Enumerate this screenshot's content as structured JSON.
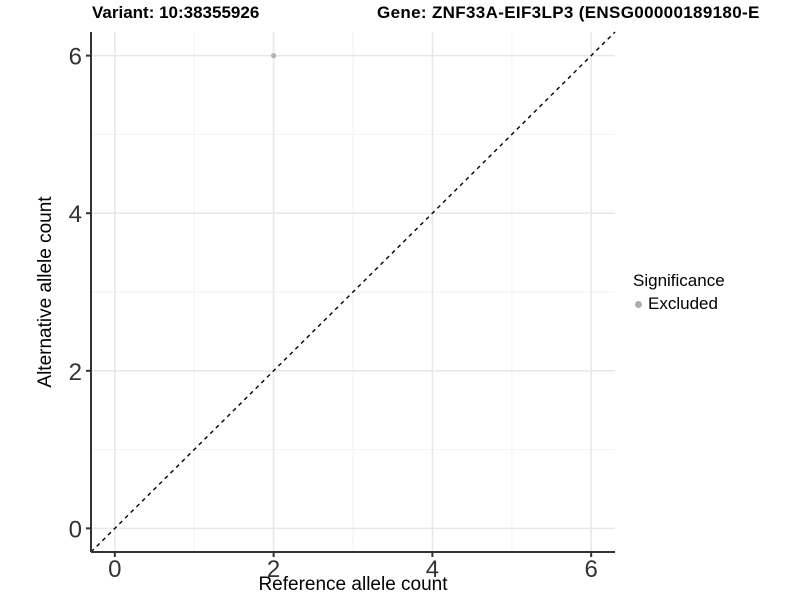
{
  "titles": {
    "variant": "Variant: 10:38355926",
    "gene": "Gene: ZNF33A-EIF3LP3 (ENSG00000189180-E"
  },
  "chart_data": {
    "type": "scatter",
    "title": "Variant: 10:38355926  |  Gene: ZNF33A-EIF3LP3 (ENSG00000189180-E…)",
    "xlabel": "Reference allele count",
    "ylabel": "Alternative allele count",
    "xlim": [
      -0.3,
      6.3
    ],
    "ylim": [
      -0.3,
      6.3
    ],
    "x_major_ticks": [
      0,
      2,
      4,
      6
    ],
    "x_minor_ticks": [
      1,
      3,
      5
    ],
    "y_major_ticks": [
      0,
      2,
      4,
      6
    ],
    "y_minor_ticks": [
      1,
      3,
      5
    ],
    "grid": true,
    "points": [
      {
        "x": 2,
        "y": 6,
        "series": "Excluded"
      }
    ],
    "reference_line": {
      "type": "abline",
      "slope": 1,
      "intercept": 0,
      "style": "dashed",
      "color": "#000000"
    },
    "legend": {
      "title": "Significance",
      "position": "right",
      "items": [
        {
          "label": "Excluded",
          "color": "#adadad"
        }
      ]
    },
    "colors": {
      "point_excluded": "#b3b3b3",
      "grid_major": "#e8e8e8",
      "grid_minor": "#f2f2f2",
      "axis": "#333333"
    }
  }
}
